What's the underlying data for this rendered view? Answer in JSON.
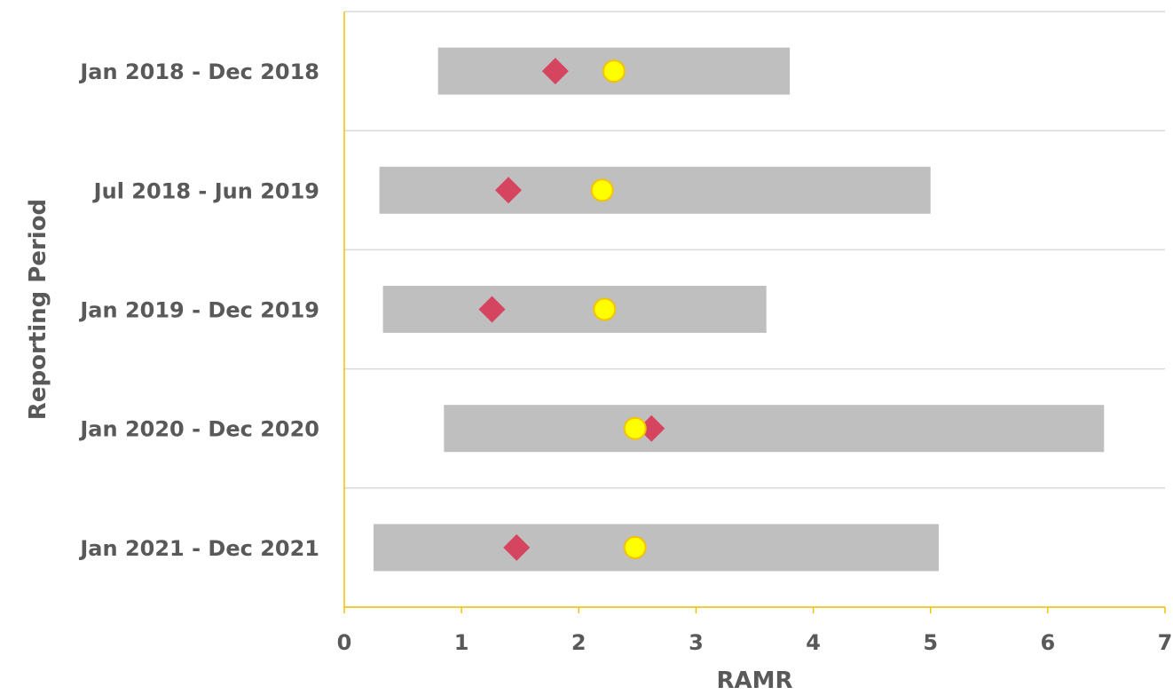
{
  "chart_data": {
    "type": "range-dot",
    "xlabel": "RAMR",
    "ylabel": "Reporting Period",
    "xlim": [
      0,
      7
    ],
    "xticks": [
      "0",
      "1",
      "2",
      "3",
      "4",
      "5",
      "6",
      "7"
    ],
    "categories": [
      "Jan 2018 - Dec 2018",
      "Jul 2018 - Jun 2019",
      "Jan 2019 - Dec 2019",
      "Jan 2020 - Dec 2020",
      "Jan 2021 - Dec 2021"
    ],
    "series": [
      {
        "kind": "range-bar",
        "color": "#bfbfbf",
        "values": [
          [
            0.8,
            3.8
          ],
          [
            0.3,
            5.0
          ],
          [
            0.33,
            3.6
          ],
          [
            0.85,
            6.48
          ],
          [
            0.25,
            5.07
          ]
        ]
      },
      {
        "kind": "diamond-marker",
        "color": "#d64560",
        "values": [
          1.8,
          1.4,
          1.26,
          2.62,
          1.47
        ]
      },
      {
        "kind": "circle-marker",
        "color": "#ffff00",
        "stroke": "#f2c200",
        "values": [
          2.3,
          2.2,
          2.22,
          2.48,
          2.48
        ]
      }
    ],
    "grid": "horizontal separators",
    "axis_color": "#f2c200",
    "grid_color": "#d9d9d9"
  }
}
